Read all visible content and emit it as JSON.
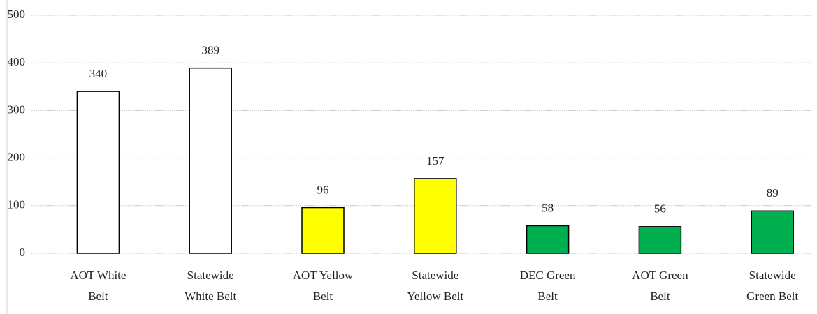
{
  "chart_data": {
    "type": "bar",
    "categories": [
      "AOT White Belt",
      "Statewide White Belt",
      "AOT Yellow Belt",
      "Statewide Yellow Belt",
      "DEC Green Belt",
      "AOT Green Belt",
      "Statewide Green Belt"
    ],
    "values": [
      340,
      389,
      96,
      157,
      58,
      56,
      89
    ],
    "colors": [
      "#ffffff",
      "#ffffff",
      "#ffff00",
      "#ffff00",
      "#00b050",
      "#00b050",
      "#00b050"
    ],
    "ylim": [
      0,
      500
    ],
    "yticks": [
      0,
      100,
      200,
      300,
      400,
      500
    ],
    "grid": true
  }
}
